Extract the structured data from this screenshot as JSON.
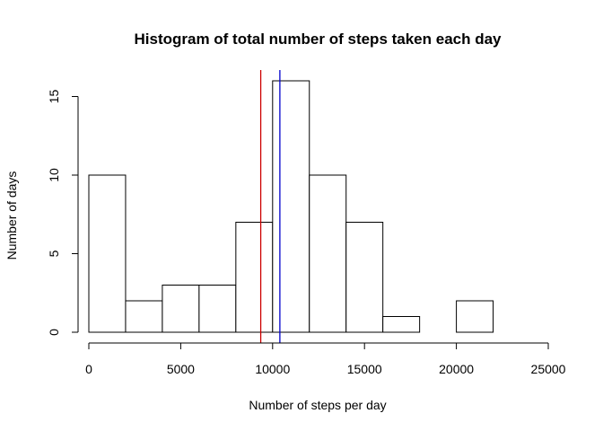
{
  "chart_data": {
    "type": "bar",
    "title": "Histogram of total number of steps taken each day",
    "xlabel": "Number of steps per day",
    "ylabel": "Number of days",
    "bins": [
      {
        "start": 0,
        "end": 2000,
        "count": 10
      },
      {
        "start": 2000,
        "end": 4000,
        "count": 2
      },
      {
        "start": 4000,
        "end": 6000,
        "count": 3
      },
      {
        "start": 6000,
        "end": 8000,
        "count": 3
      },
      {
        "start": 8000,
        "end": 10000,
        "count": 7
      },
      {
        "start": 10000,
        "end": 12000,
        "count": 16
      },
      {
        "start": 12000,
        "end": 14000,
        "count": 10
      },
      {
        "start": 14000,
        "end": 16000,
        "count": 7
      },
      {
        "start": 16000,
        "end": 18000,
        "count": 1
      },
      {
        "start": 18000,
        "end": 20000,
        "count": 0
      },
      {
        "start": 20000,
        "end": 22000,
        "count": 2
      }
    ],
    "xticks": [
      0,
      5000,
      10000,
      15000,
      20000,
      25000
    ],
    "yticks": [
      0,
      5,
      10,
      15
    ],
    "xlim": [
      0,
      25000
    ],
    "ylim": [
      0,
      16
    ],
    "grid": false,
    "reference_lines": [
      {
        "x": 9354,
        "color": "#cc0000"
      },
      {
        "x": 10395,
        "color": "#0000cc"
      }
    ],
    "bar_fill": "#ffffff",
    "bar_stroke": "#000000"
  }
}
